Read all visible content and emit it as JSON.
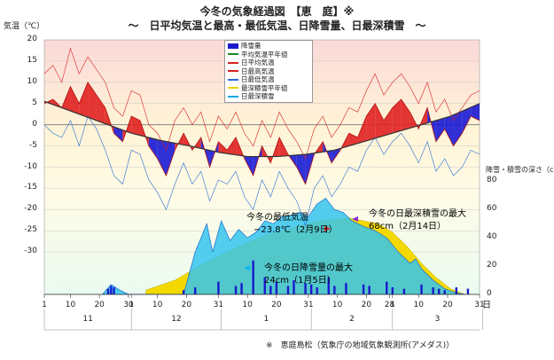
{
  "header": {
    "title": "今冬の気象経過図　【恵　庭】※",
    "subtitle": "～　日平均気温と最高・最低気温、日降雪量、日最深積雪　～"
  },
  "footer": {
    "note": "※　恵庭島松（気象庁の地域気象観測所(アメダス)）"
  },
  "chart_data": {
    "type": "line",
    "title": "今冬の気象経過図　【恵　庭】※",
    "ylabel_left": "気温（℃）",
    "ylabel_right": "降雪・積雪の深さ（cm）",
    "xlabel_unit": "日",
    "ylim_left": [
      -40,
      20
    ],
    "ylim_right": [
      0,
      180
    ],
    "left_ticks": [
      "20",
      "15",
      "10",
      "5",
      "0",
      "-5",
      "-10",
      "-15",
      "-20",
      "-25",
      "-30"
    ],
    "right_ticks": [
      "80",
      "60",
      "40",
      "20",
      "0"
    ],
    "day_ticks": [
      "1",
      "10",
      "20",
      "30",
      "1",
      "10",
      "20",
      "31",
      "10",
      "20",
      "31",
      "10",
      "20",
      "28",
      "1",
      "10",
      "20",
      "31"
    ],
    "months": [
      "11",
      "12",
      "1",
      "2",
      "3"
    ],
    "colors": {
      "snowfall": "#1a1acc",
      "normal_mean_temp": "#1a8a2a",
      "daily_mean_temp": "#d62020",
      "daily_max_temp": "#d62020",
      "daily_min_temp": "#2a6ed6",
      "normal_snow_depth": "#e8d200",
      "snow_depth": "#0aa8e0"
    },
    "series": [
      {
        "name": "降雪量",
        "type": "bar",
        "days": [
          22,
          23,
          24,
          48,
          52,
          60,
          66,
          68,
          72,
          76,
          78,
          80,
          84,
          86,
          90,
          92,
          94,
          98,
          100,
          104,
          110,
          112,
          118,
          120,
          124,
          130,
          134,
          136,
          138,
          142,
          146
        ],
        "values": [
          4,
          6,
          5,
          3,
          5,
          9,
          6,
          8,
          24,
          12,
          6,
          9,
          6,
          10,
          8,
          7,
          5,
          12,
          6,
          8,
          7,
          6,
          9,
          5,
          4,
          7,
          5,
          4,
          3,
          5,
          4
        ]
      },
      {
        "name": "平均気温平年値",
        "type": "line",
        "x": [
          0,
          10,
          20,
          30,
          40,
          50,
          60,
          70,
          80,
          90,
          100,
          110,
          120,
          130,
          140,
          150
        ],
        "y": [
          5.5,
          3,
          0.5,
          -2,
          -3.7,
          -5,
          -6.5,
          -7.5,
          -7.5,
          -7,
          -6,
          -4,
          -2,
          0,
          2,
          5
        ]
      },
      {
        "name": "日平均気温",
        "type": "line",
        "x": [
          0,
          3,
          6,
          9,
          12,
          15,
          18,
          21,
          24,
          27,
          30,
          33,
          36,
          39,
          42,
          45,
          48,
          51,
          54,
          57,
          60,
          63,
          66,
          69,
          72,
          75,
          78,
          81,
          84,
          87,
          90,
          93,
          96,
          99,
          102,
          105,
          108,
          111,
          114,
          117,
          120,
          123,
          126,
          129,
          132,
          135,
          138,
          141,
          144,
          147,
          150
        ],
        "y": [
          5,
          6,
          4,
          9,
          5,
          10,
          7,
          4,
          -2,
          -4,
          2,
          1,
          -5,
          -8,
          -12,
          -6,
          -2,
          -6,
          -3,
          -10,
          -4,
          -6,
          -3,
          -8,
          -12,
          -5,
          -9,
          -3,
          -7,
          -10,
          -14,
          -7,
          -4,
          -9,
          -6,
          -2,
          -3,
          2,
          5,
          1,
          4,
          6,
          3,
          -1,
          4,
          -4,
          -1,
          -5,
          -2,
          2,
          1
        ]
      },
      {
        "name": "日最高気温",
        "type": "line",
        "x": [
          0,
          3,
          6,
          9,
          12,
          15,
          18,
          21,
          24,
          27,
          30,
          33,
          36,
          39,
          42,
          45,
          48,
          51,
          54,
          57,
          60,
          63,
          66,
          69,
          72,
          75,
          78,
          81,
          84,
          87,
          90,
          93,
          96,
          99,
          102,
          105,
          108,
          111,
          114,
          117,
          120,
          123,
          126,
          129,
          132,
          135,
          138,
          141,
          144,
          147,
          150
        ],
        "y": [
          12,
          14,
          10,
          18,
          12,
          16,
          13,
          10,
          4,
          2,
          8,
          7,
          0,
          -2,
          -6,
          1,
          4,
          0,
          3,
          -4,
          2,
          -1,
          3,
          -2,
          -5,
          1,
          -3,
          3,
          -1,
          -4,
          -8,
          -1,
          2,
          -3,
          0,
          4,
          3,
          8,
          12,
          7,
          10,
          12,
          9,
          5,
          10,
          3,
          6,
          1,
          4,
          7,
          8
        ]
      },
      {
        "name": "日最低気温",
        "type": "line",
        "x": [
          0,
          3,
          6,
          9,
          12,
          15,
          18,
          21,
          24,
          27,
          30,
          33,
          36,
          39,
          42,
          45,
          48,
          51,
          54,
          57,
          60,
          63,
          66,
          69,
          72,
          75,
          78,
          81,
          84,
          87,
          90,
          93,
          96,
          99,
          102,
          105,
          108,
          111,
          114,
          117,
          120,
          123,
          126,
          129,
          132,
          135,
          138,
          141,
          144,
          147,
          150
        ],
        "y": [
          0,
          -2,
          -3,
          1,
          -5,
          2,
          -1,
          -6,
          -12,
          -14,
          -6,
          -7,
          -13,
          -16,
          -20,
          -14,
          -9,
          -14,
          -11,
          -18,
          -13,
          -14,
          -11,
          -17,
          -20,
          -13,
          -17,
          -11,
          -15,
          -18,
          -23.8,
          -15,
          -12,
          -17,
          -14,
          -10,
          -11,
          -6,
          -3,
          -7,
          -4,
          -2,
          -5,
          -9,
          -4,
          -11,
          -8,
          -12,
          -10,
          -6,
          -7
        ]
      },
      {
        "name": "最深積雪平年値",
        "type": "area",
        "x": [
          35,
          45,
          55,
          65,
          75,
          85,
          95,
          105,
          115,
          120,
          125,
          130,
          135,
          140,
          145
        ],
        "y": [
          3,
          10,
          22,
          32,
          41,
          47,
          52,
          54,
          50,
          44,
          34,
          22,
          12,
          4,
          0
        ]
      },
      {
        "name": "日最深積雪",
        "type": "area",
        "x": [
          20,
          23,
          26,
          29,
          32,
          48,
          52,
          56,
          58,
          61,
          64,
          67,
          70,
          73,
          76,
          79,
          82,
          85,
          88,
          91,
          94,
          97,
          100,
          103,
          106,
          110,
          114,
          118,
          122,
          126,
          128,
          130,
          134,
          138,
          142,
          145
        ],
        "y": [
          0,
          7,
          3,
          0,
          0,
          0,
          30,
          50,
          30,
          52,
          38,
          46,
          40,
          44,
          52,
          50,
          55,
          56,
          58,
          55,
          64,
          68,
          60,
          58,
          52,
          48,
          45,
          40,
          30,
          22,
          25,
          18,
          10,
          4,
          1,
          0
        ]
      }
    ],
    "annotations": [
      {
        "text": "今冬の最低気温",
        "value": "−23.8℃（2月9日）"
      },
      {
        "text": "今冬の日最深積雪の最大",
        "value": "68cm（2月14日）"
      },
      {
        "text": "今冬の日降雪量の最大",
        "value": "24cm（1月5日）"
      }
    ],
    "legend": [
      "降雪量",
      "平均気温平年値",
      "日平均気温",
      "日最高気温",
      "日最低気温",
      "最深積雪平年値",
      "日最深積雪"
    ],
    "legend_position": "top-right"
  }
}
